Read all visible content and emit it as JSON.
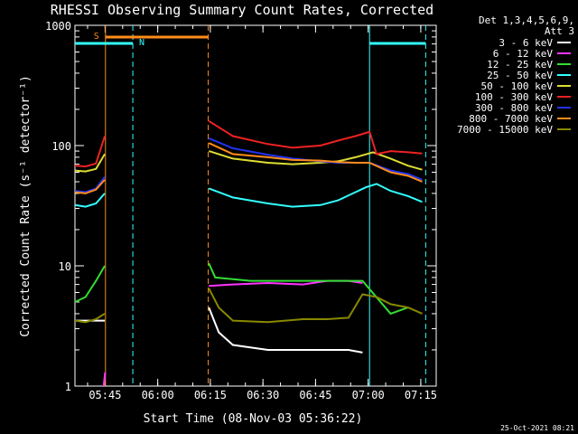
{
  "chart_data": {
    "type": "line",
    "title": "RHESSI Observing Summary Count Rates, Corrected",
    "xlabel": "Start Time (08-Nov-03 05:36:22)",
    "ylabel": "Corrected Count Rate (s⁻¹ detector⁻¹)",
    "yscale": "log",
    "ylim": [
      1,
      1000
    ],
    "xlim_minutes": [
      0,
      103
    ],
    "x_ticks": [
      {
        "t": 8.6,
        "label": "05:45"
      },
      {
        "t": 23.6,
        "label": "06:00"
      },
      {
        "t": 38.6,
        "label": "06:15"
      },
      {
        "t": 53.6,
        "label": "06:30"
      },
      {
        "t": 68.6,
        "label": "06:45"
      },
      {
        "t": 83.6,
        "label": "07:00"
      },
      {
        "t": 98.6,
        "label": "07:15"
      }
    ],
    "y_ticks": [
      {
        "v": 1,
        "label": "1"
      },
      {
        "v": 10,
        "label": "10"
      },
      {
        "v": 100,
        "label": "100"
      },
      {
        "v": 1000,
        "label": "1000"
      }
    ],
    "legend_header": [
      "Det 1,3,4,5,6,9,",
      "Att 3"
    ],
    "legend_position": "right",
    "gaps_minutes": [
      [
        8.7,
        37.9
      ],
      [
        100,
        103
      ]
    ],
    "series": [
      {
        "name": "3 - 6 keV",
        "color": "#ffffff",
        "x": [
          0,
          8.5,
          38.2,
          41,
          45,
          55,
          65,
          72,
          78,
          82
        ],
        "y": [
          3.5,
          3.5,
          4.5,
          2.8,
          2.2,
          2,
          2,
          2,
          2,
          1.9
        ]
      },
      {
        "name": "6 - 12 keV",
        "color": "#ff33ff",
        "x": [
          8.2,
          8.6,
          38.2,
          45,
          55,
          65,
          72,
          78,
          82
        ],
        "y": [
          1.0,
          1.3,
          6.8,
          7.0,
          7.2,
          7.0,
          7.5,
          7.5,
          7.2
        ]
      },
      {
        "name": "12 - 25 keV",
        "color": "#33dd33",
        "x": [
          0,
          3,
          6,
          8.5,
          38.2,
          40,
          50,
          60,
          70,
          75,
          82,
          90,
          95
        ],
        "y": [
          5,
          5.5,
          7.5,
          10.0,
          10.5,
          8,
          7.5,
          7.5,
          7.5,
          7.5,
          7.5,
          4.0,
          4.5
        ]
      },
      {
        "name": "25 - 50 keV",
        "color": "#33ffff",
        "x": [
          0,
          3,
          6,
          8.5,
          38.2,
          45,
          55,
          62,
          70,
          75,
          80,
          83,
          86,
          90,
          95,
          99
        ],
        "y": [
          32,
          31,
          33,
          40,
          44,
          37,
          33,
          31,
          32,
          35,
          41,
          45,
          48,
          42,
          38,
          34
        ]
      },
      {
        "name": "50 - 100 keV",
        "color": "#dddd33",
        "x": [
          0,
          3,
          6,
          8.5,
          38.2,
          45,
          55,
          62,
          70,
          75,
          80,
          85,
          90,
          95,
          99
        ],
        "y": [
          62,
          61,
          64,
          85,
          90,
          78,
          72,
          70,
          72,
          74,
          80,
          88,
          78,
          68,
          63
        ]
      },
      {
        "name": "100 - 300 keV",
        "color": "#ee2222",
        "x": [
          0,
          3,
          6,
          8.5,
          38.2,
          45,
          55,
          62,
          70,
          75,
          80,
          84,
          86,
          90,
          95,
          99
        ],
        "y": [
          68,
          67,
          71,
          120,
          160,
          120,
          103,
          96,
          100,
          110,
          120,
          130,
          85,
          90,
          88,
          86
        ]
      },
      {
        "name": "300 - 800 keV",
        "color": "#2233ee",
        "x": [
          0,
          3,
          6,
          8.5,
          38.2,
          45,
          55,
          62,
          70,
          75,
          80,
          84,
          90,
          95,
          99
        ],
        "y": [
          42,
          41,
          44,
          55,
          115,
          95,
          84,
          78,
          74,
          72,
          72,
          72,
          62,
          58,
          52
        ]
      },
      {
        "name": "800 - 7000 keV",
        "color": "#ff8c1a",
        "x": [
          0,
          3,
          6,
          8.5,
          38.2,
          45,
          55,
          62,
          70,
          75,
          80,
          84,
          90,
          95,
          99
        ],
        "y": [
          41,
          40,
          43,
          52,
          105,
          85,
          80,
          76,
          75,
          73,
          72,
          72,
          60,
          56,
          50
        ]
      },
      {
        "name": "7000 - 15000 keV",
        "color": "#888800",
        "x": [
          0,
          3,
          6,
          8.5,
          38.2,
          41,
          45,
          55,
          65,
          72,
          78,
          82,
          86,
          90,
          95,
          99
        ],
        "y": [
          3.5,
          3.4,
          3.6,
          4.0,
          6.5,
          4.5,
          3.5,
          3.4,
          3.6,
          3.6,
          3.7,
          5.8,
          5.5,
          4.8,
          4.5,
          4.0
        ]
      }
    ],
    "annotations": {
      "saa_label": "S",
      "night_label": "N",
      "saa_minutes": [
        8.7,
        38.0
      ],
      "night_minutes": [
        [
          0,
          16.5
        ],
        [
          84,
          100
        ]
      ],
      "vertical_markers": [
        {
          "t": 8.7,
          "color": "#ff8c1a",
          "style": "solid"
        },
        {
          "t": 16.5,
          "color": "#33ffff",
          "style": "dashed"
        },
        {
          "t": 38.0,
          "color": "#ff8c1a",
          "style": "dashed"
        },
        {
          "t": 84.0,
          "color": "#33ffff",
          "style": "solid"
        },
        {
          "t": 100.0,
          "color": "#33ffff",
          "style": "dashed"
        }
      ]
    }
  },
  "footer": {
    "date_stamp": "25-Oct-2021 08:21"
  }
}
